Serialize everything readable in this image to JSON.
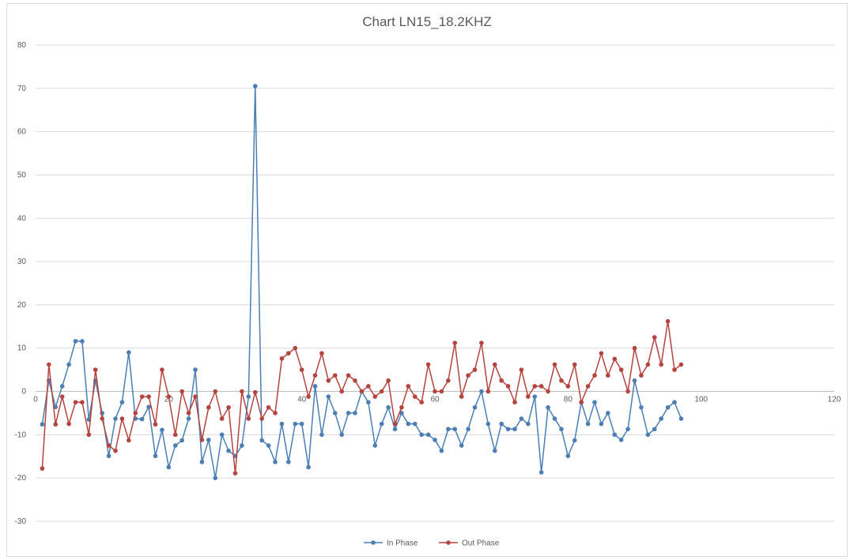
{
  "chart_data": {
    "type": "scatter",
    "title": "Chart LN15_18.2KHZ",
    "xlabel": "",
    "ylabel": "",
    "xlim": [
      0,
      120
    ],
    "ylim": [
      -30,
      80
    ],
    "x_ticks": [
      0,
      20,
      40,
      60,
      80,
      100,
      120
    ],
    "y_ticks": [
      -30,
      -20,
      -10,
      0,
      10,
      20,
      30,
      40,
      50,
      60,
      70,
      80
    ],
    "grid": "horizontal",
    "legend_position": "bottom",
    "series": [
      {
        "name": "In Phase",
        "color": "#4a7eb5",
        "values": [
          -7.6,
          2.5,
          -3.6,
          1.2,
          6.2,
          11.6,
          11.6,
          -6.5,
          2.5,
          -5.0,
          -14.9,
          -6.3,
          -2.5,
          9.0,
          -6.3,
          -6.4,
          -3.6,
          -14.9,
          -8.9,
          -17.5,
          -12.5,
          -11.3,
          -6.3,
          5.0,
          -16.3,
          -11.2,
          -20.0,
          -10.0,
          -13.7,
          -14.9,
          -12.5,
          -1.2,
          70.5,
          -11.3,
          -12.5,
          -16.3,
          -7.5,
          -16.3,
          -7.5,
          -7.5,
          -17.5,
          1.2,
          -10.0,
          -1.2,
          -5.0,
          -10.0,
          -5.0,
          -5.0,
          0.0,
          -2.5,
          -12.5,
          -7.5,
          -3.7,
          -8.7,
          -5.0,
          -7.5,
          -7.5,
          -10.0,
          -10.0,
          -11.2,
          -13.7,
          -8.7,
          -8.7,
          -12.5,
          -8.7,
          -3.7,
          0.0,
          -7.5,
          -13.7,
          -7.5,
          -8.7,
          -8.7,
          -6.3,
          -7.5,
          -1.2,
          -18.7,
          -3.7,
          -6.3,
          -8.7,
          -14.9,
          -11.3,
          -2.5,
          -7.5,
          -2.5,
          -7.5,
          -5.0,
          -10.0,
          -11.2,
          -8.7,
          2.5,
          -3.7,
          -10.0,
          -8.7,
          -6.3,
          -3.7,
          -2.5,
          -6.3
        ]
      },
      {
        "name": "Out Phase",
        "color": "#b5433e",
        "values": [
          -17.8,
          6.2,
          -7.6,
          -1.2,
          -7.5,
          -2.5,
          -2.5,
          -10.0,
          5.0,
          -6.3,
          -12.5,
          -13.7,
          -6.3,
          -11.3,
          -5.0,
          -1.2,
          -1.2,
          -7.6,
          5.0,
          -1.2,
          -10.0,
          0.0,
          -5.0,
          -1.2,
          -11.2,
          -3.7,
          0.0,
          -6.3,
          -3.7,
          -18.9,
          0.0,
          -6.3,
          -0.2,
          -6.3,
          -3.7,
          -5.0,
          7.6,
          8.8,
          10.0,
          5.0,
          -1.2,
          3.7,
          8.8,
          2.5,
          3.7,
          0.0,
          3.7,
          2.5,
          0.0,
          1.2,
          -1.2,
          0.0,
          2.5,
          -7.5,
          -3.7,
          1.2,
          -1.2,
          -2.5,
          6.2,
          0.0,
          0.0,
          2.5,
          11.2,
          -1.2,
          3.7,
          5.0,
          11.2,
          0.0,
          6.2,
          2.5,
          1.2,
          -2.5,
          5.0,
          -1.2,
          1.2,
          1.2,
          0.0,
          6.2,
          2.5,
          1.2,
          6.2,
          -2.5,
          1.2,
          3.7,
          8.8,
          3.7,
          7.5,
          5.0,
          0.0,
          10.0,
          3.7,
          6.2,
          12.5,
          6.2,
          16.2,
          5.0,
          6.2
        ]
      }
    ]
  }
}
